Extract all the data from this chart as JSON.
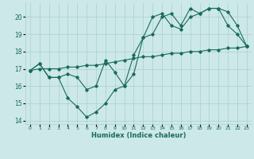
{
  "title": "",
  "xlabel": "Humidex (Indice chaleur)",
  "bg_color": "#cce8e8",
  "grid_color": "#aacfcf",
  "line_color": "#1a6b5a",
  "xlim": [
    -0.5,
    23.5
  ],
  "ylim": [
    13.8,
    20.8
  ],
  "yticks": [
    14,
    15,
    16,
    17,
    18,
    19,
    20
  ],
  "xticks": [
    0,
    1,
    2,
    3,
    4,
    5,
    6,
    7,
    8,
    9,
    10,
    11,
    12,
    13,
    14,
    15,
    16,
    17,
    18,
    19,
    20,
    21,
    22,
    23
  ],
  "line1_x": [
    0,
    1,
    2,
    3,
    4,
    5,
    6,
    7,
    8,
    9,
    10,
    11,
    12,
    13,
    14,
    15,
    16,
    17,
    18,
    19,
    20,
    21,
    22,
    23
  ],
  "line1_y": [
    16.9,
    17.3,
    16.5,
    16.5,
    15.3,
    14.8,
    14.2,
    14.5,
    15.0,
    15.8,
    16.0,
    16.7,
    18.8,
    20.0,
    20.2,
    19.5,
    19.3,
    20.0,
    20.2,
    20.5,
    20.5,
    19.5,
    19.0,
    18.3
  ],
  "line2_x": [
    0,
    1,
    2,
    3,
    4,
    5,
    6,
    7,
    8,
    9,
    10,
    11,
    12,
    13,
    14,
    15,
    16,
    17,
    18,
    19,
    20,
    21,
    22,
    23
  ],
  "line2_y": [
    16.9,
    17.3,
    16.5,
    16.5,
    16.7,
    16.5,
    15.8,
    16.0,
    17.5,
    16.8,
    16.0,
    17.8,
    18.8,
    19.0,
    20.0,
    20.2,
    19.5,
    20.5,
    20.2,
    20.5,
    20.5,
    20.3,
    19.5,
    18.3
  ],
  "line3_x": [
    0,
    1,
    2,
    3,
    4,
    5,
    6,
    7,
    8,
    9,
    10,
    11,
    12,
    13,
    14,
    15,
    16,
    17,
    18,
    19,
    20,
    21,
    22,
    23
  ],
  "line3_y": [
    16.9,
    17.0,
    17.0,
    17.0,
    17.1,
    17.1,
    17.2,
    17.2,
    17.3,
    17.4,
    17.5,
    17.6,
    17.7,
    17.7,
    17.8,
    17.9,
    17.9,
    18.0,
    18.0,
    18.1,
    18.1,
    18.2,
    18.2,
    18.3
  ]
}
